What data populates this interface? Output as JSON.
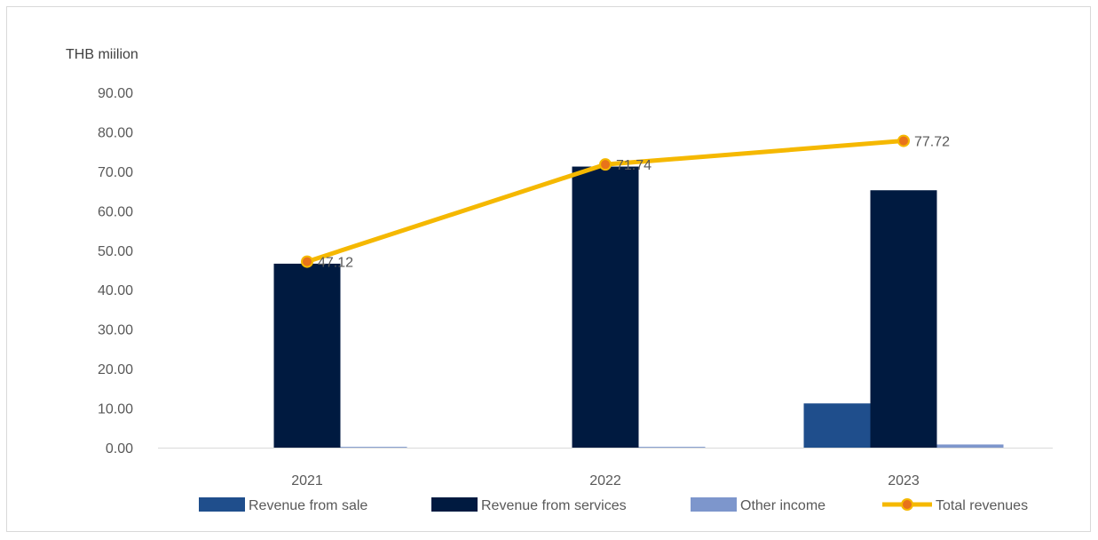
{
  "chart_data": {
    "type": "bar",
    "unit_label": "THB miilion",
    "categories": [
      "2021",
      "2022",
      "2023"
    ],
    "ylim": [
      0,
      90
    ],
    "yticks": [
      "0.00",
      "10.00",
      "20.00",
      "30.00",
      "40.00",
      "50.00",
      "60.00",
      "70.00",
      "80.00",
      "90.00"
    ],
    "grid": false,
    "legend_position": "bottom",
    "series": [
      {
        "name": "Revenue from sale",
        "type": "bar",
        "color": "#1f4e8c",
        "values": [
          0,
          0,
          11.2
        ]
      },
      {
        "name": "Revenue from services",
        "type": "bar",
        "color": "#001a40",
        "values": [
          46.6,
          71.2,
          65.2
        ]
      },
      {
        "name": "Other income",
        "type": "bar",
        "color": "#7d96cc",
        "values": [
          0.2,
          0.2,
          0.8
        ]
      },
      {
        "name": "Total revenues",
        "type": "line",
        "color": "#f5b800",
        "marker_color": "#e8731a",
        "values": [
          47.12,
          71.74,
          77.72
        ],
        "data_labels": [
          "47.12",
          "71.74",
          "77.72"
        ]
      }
    ]
  }
}
